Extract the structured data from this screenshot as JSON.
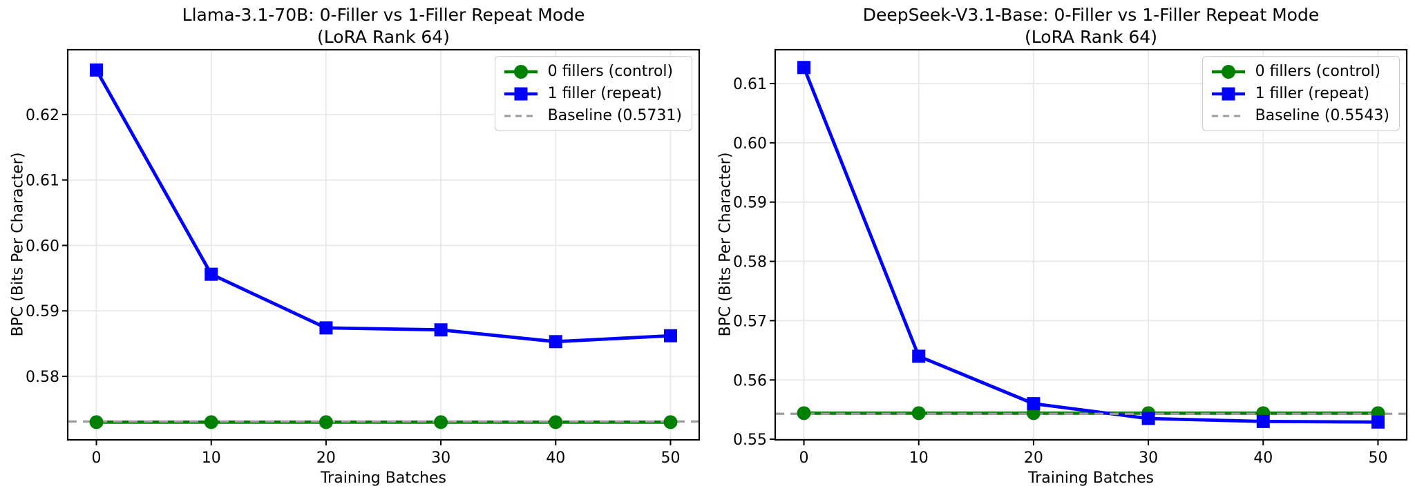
{
  "colors": {
    "control_green": "#008000",
    "repeat_blue": "#0000ff",
    "baseline_gray": "#9b9b9b",
    "grid": "#e6e6e6",
    "spine": "#000000",
    "text": "#000000"
  },
  "chart_data": [
    {
      "type": "line",
      "title": "Llama-3.1-70B: 0-Filler vs 1-Filler Repeat Mode",
      "subtitle": "(LoRA Rank 64)",
      "xlabel": "Training Batches",
      "ylabel": "BPC (Bits Per Character)",
      "x": [
        0,
        10,
        20,
        30,
        40,
        50
      ],
      "series": [
        {
          "name": "0 fillers (control)",
          "color": "#008000",
          "marker": "circle",
          "values": [
            0.573,
            0.573,
            0.573,
            0.573,
            0.573,
            0.573
          ]
        },
        {
          "name": "1 filler (repeat)",
          "color": "#0000ff",
          "marker": "square",
          "values": [
            0.6268,
            0.5956,
            0.5874,
            0.5871,
            0.5853,
            0.5862
          ]
        }
      ],
      "baseline": {
        "label": "Baseline (0.5731)",
        "value": 0.5731,
        "color": "#9b9b9b",
        "style": "dashed"
      },
      "xlim": [
        -2.5,
        52.5
      ],
      "ylim": [
        0.5703,
        0.6299
      ],
      "xticks": [
        0,
        10,
        20,
        30,
        40,
        50
      ],
      "xtick_labels": [
        "0",
        "10",
        "20",
        "30",
        "40",
        "50"
      ],
      "yticks": [
        0.58,
        0.59,
        0.6,
        0.61,
        0.62
      ],
      "ytick_labels": [
        "0.58",
        "0.59",
        "0.60",
        "0.61",
        "0.62"
      ],
      "grid": true,
      "legend_position": "upper right"
    },
    {
      "type": "line",
      "title": "DeepSeek-V3.1-Base: 0-Filler vs 1-Filler Repeat Mode",
      "subtitle": "(LoRA Rank 64)",
      "xlabel": "Training Batches",
      "ylabel": "BPC (Bits Per Character)",
      "x": [
        0,
        10,
        20,
        30,
        40,
        50
      ],
      "series": [
        {
          "name": "0 fillers (control)",
          "color": "#008000",
          "marker": "circle",
          "values": [
            0.5544,
            0.5544,
            0.5544,
            0.5544,
            0.5544,
            0.5544
          ]
        },
        {
          "name": "1 filler (repeat)",
          "color": "#0000ff",
          "marker": "square",
          "values": [
            0.6127,
            0.564,
            0.556,
            0.5535,
            0.553,
            0.5529
          ]
        }
      ],
      "baseline": {
        "label": "Baseline (0.5543)",
        "value": 0.5543,
        "color": "#9b9b9b",
        "style": "dashed"
      },
      "xlim": [
        -2.5,
        52.5
      ],
      "ylim": [
        0.5499,
        0.6157
      ],
      "xticks": [
        0,
        10,
        20,
        30,
        40,
        50
      ],
      "xtick_labels": [
        "0",
        "10",
        "20",
        "30",
        "40",
        "50"
      ],
      "yticks": [
        0.55,
        0.56,
        0.57,
        0.58,
        0.59,
        0.6,
        0.61
      ],
      "ytick_labels": [
        "0.55",
        "0.56",
        "0.57",
        "0.58",
        "0.59",
        "0.60",
        "0.61"
      ],
      "grid": true,
      "legend_position": "upper right"
    }
  ]
}
